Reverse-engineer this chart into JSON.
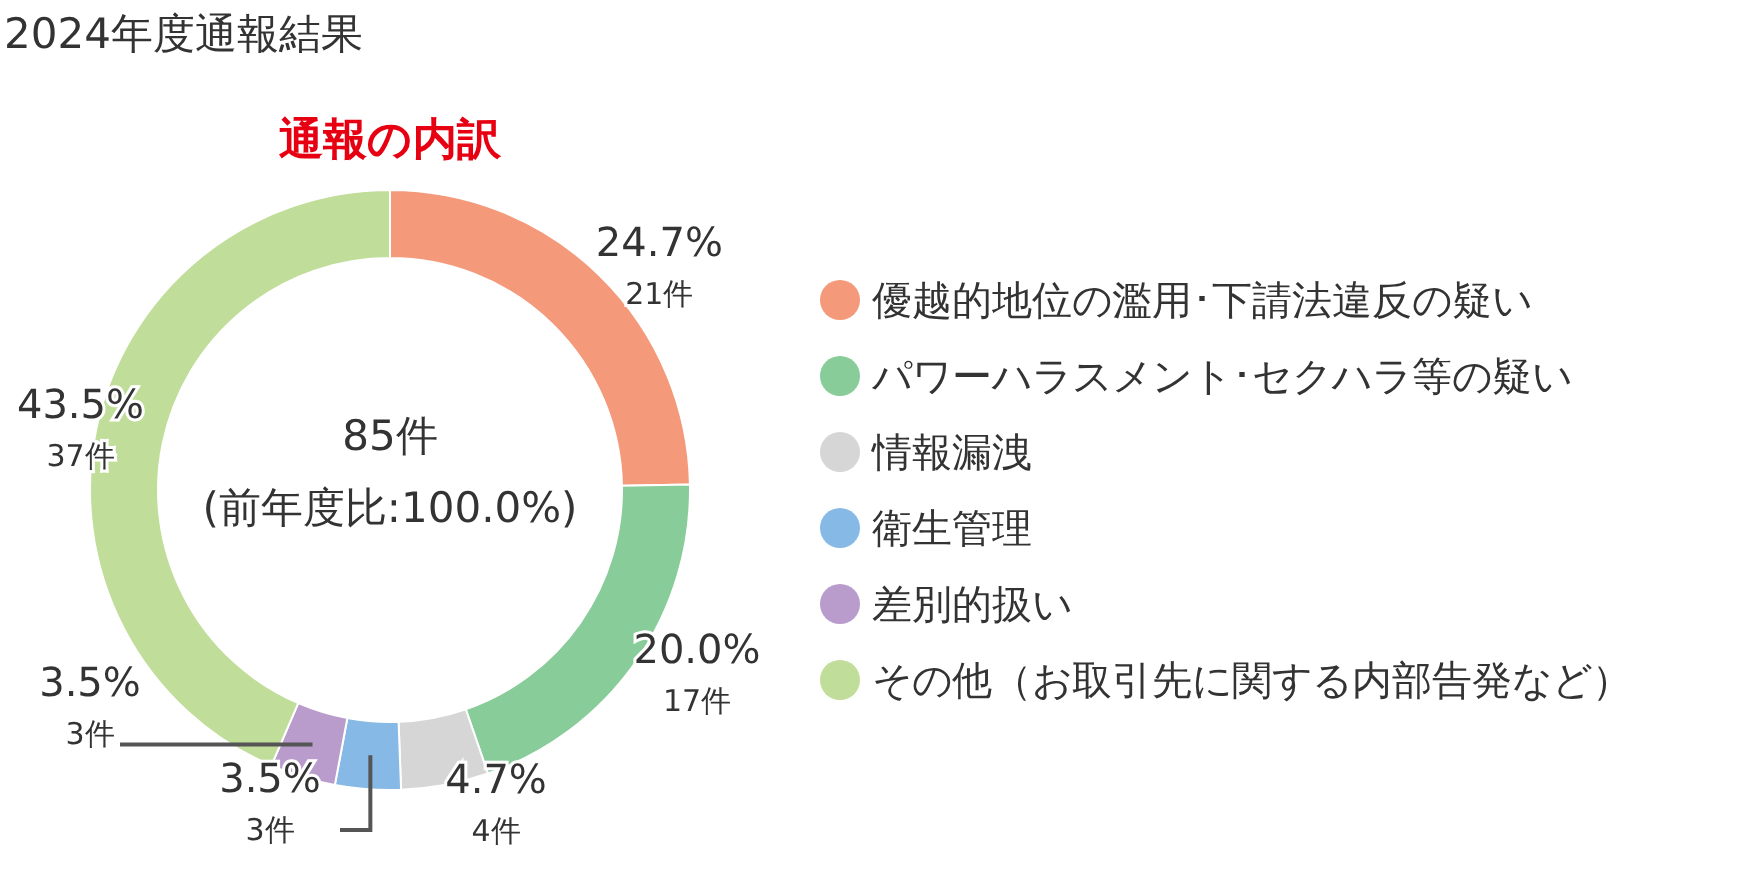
{
  "chart_data": {
    "type": "donut",
    "title": "2024年度通報結果",
    "subtitle": "通報の内訳",
    "categories": [
      "優越的地位の濫用･下請法違反の疑い",
      "パワーハラスメント･セクハラ等の疑い",
      "情報漏洩",
      "衛生管理",
      "差別的扱い",
      "その他（お取引先に関する内部告発など）"
    ],
    "values": [
      21,
      17,
      4,
      3,
      3,
      37
    ],
    "colors": [
      "#f4997a",
      "#88cc99",
      "#d6d6d6",
      "#86b9e6",
      "#b99ccc",
      "#c0dd9a"
    ],
    "value_labels": [
      "24.7%\n21件",
      "20.0%\n17件",
      "4.7%\n4件",
      "3.5%\n3件",
      "3.5%\n3件",
      "43.5%\n37件"
    ],
    "annotations": [
      "85件",
      "(前年度比:100.0%)"
    ],
    "legend": "right"
  }
}
